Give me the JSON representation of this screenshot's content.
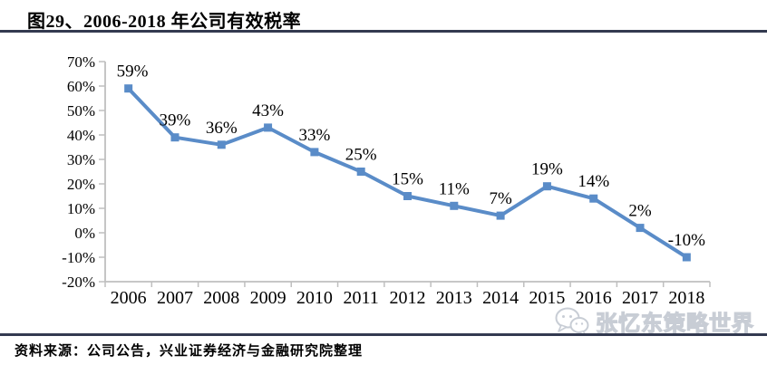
{
  "header": {
    "title": "图29、2006-2018 年公司有效税率"
  },
  "chart_data": {
    "type": "line",
    "title": "2006-2018 年公司有效税率",
    "categories": [
      "2006",
      "2007",
      "2008",
      "2009",
      "2010",
      "2011",
      "2012",
      "2013",
      "2014",
      "2015",
      "2016",
      "2017",
      "2018"
    ],
    "values": [
      59,
      39,
      36,
      43,
      33,
      25,
      15,
      11,
      7,
      19,
      14,
      2,
      -10
    ],
    "data_labels": [
      "59%",
      "39%",
      "36%",
      "43%",
      "33%",
      "25%",
      "15%",
      "11%",
      "7%",
      "19%",
      "14%",
      "2%",
      "-10%"
    ],
    "xlabel": "",
    "ylabel": "",
    "ylim": [
      -20,
      70
    ],
    "ytick_step": 10,
    "ytick_labels": [
      "70%",
      "60%",
      "50%",
      "40%",
      "30%",
      "20%",
      "10%",
      "0%",
      "-10%",
      "-20%"
    ],
    "grid": false,
    "legend": "none",
    "marker": "square",
    "colors": {
      "line": "#5A8CC8",
      "axis": "#BFBFBF",
      "label": "#000000"
    }
  },
  "footer": {
    "text": "资料来源：公司公告，兴业证券经济与金融研究院整理"
  },
  "watermark": {
    "icon": "wechat-icon",
    "text": "张忆东策略世界"
  },
  "style": {
    "rule_color": "#333A50"
  }
}
